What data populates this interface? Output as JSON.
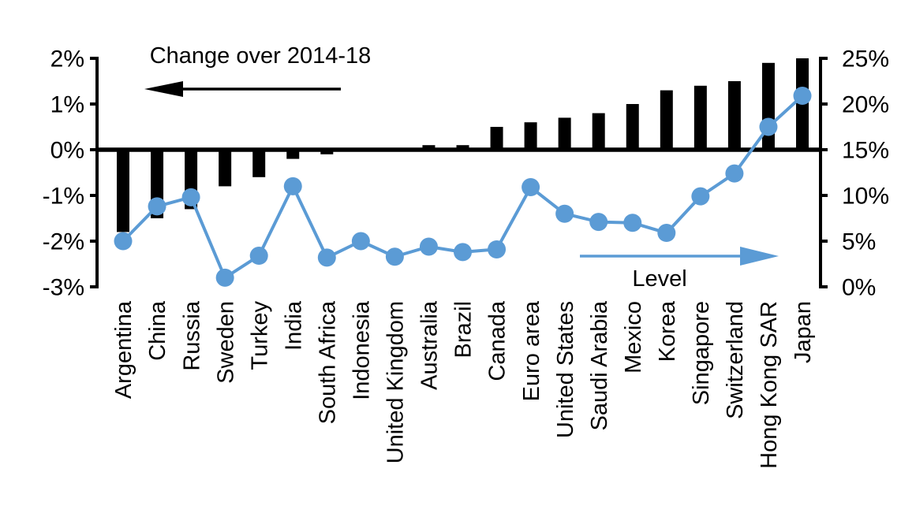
{
  "chart_data": {
    "type": "combo-bar-line",
    "title": "",
    "categories": [
      "Argentina",
      "China",
      "Russia",
      "Sweden",
      "Turkey",
      "India",
      "South Africa",
      "Indonesia",
      "United Kingdom",
      "Australia",
      "Brazil",
      "Canada",
      "Euro area",
      "United States",
      "Saudi Arabia",
      "Mexico",
      "Korea",
      "Singapore",
      "Switzerland",
      "Hong Kong SAR",
      "Japan"
    ],
    "series": [
      {
        "name": "Change over 2014-18",
        "chart": "bar",
        "axis": "left",
        "color": "#000000",
        "values": [
          -1.8,
          -1.5,
          -1.3,
          -0.8,
          -0.6,
          -0.2,
          -0.1,
          0.0,
          0.0,
          0.1,
          0.1,
          0.5,
          0.6,
          0.7,
          0.8,
          1.0,
          1.3,
          1.4,
          1.5,
          1.9,
          2.0
        ]
      },
      {
        "name": "Level",
        "chart": "line",
        "axis": "right",
        "color": "#5B9BD5",
        "values": [
          5.0,
          8.8,
          9.8,
          1.0,
          3.4,
          11.0,
          3.2,
          5.0,
          3.3,
          4.4,
          3.8,
          4.1,
          10.9,
          8.0,
          7.1,
          7.0,
          5.9,
          9.9,
          12.4,
          17.5,
          20.9
        ]
      }
    ],
    "left_axis": {
      "unit": "%",
      "min": -3,
      "max": 2,
      "tick_labels": [
        "2%",
        "1%",
        "0%",
        "-1%",
        "-2%",
        "-3%"
      ]
    },
    "right_axis": {
      "unit": "%",
      "min": 0,
      "max": 25,
      "tick_labels": [
        "25%",
        "20%",
        "15%",
        "10%",
        "5%",
        "0%"
      ]
    },
    "annotations": [
      {
        "text": "Change over 2014-18",
        "arrow": "left",
        "color": "#000000"
      },
      {
        "text": "Level",
        "arrow": "right",
        "color": "#5B9BD5"
      }
    ],
    "grid": false,
    "legend_position": "none",
    "colors": {
      "bar": "#000000",
      "line": "#5B9BD5",
      "background": "#ffffff"
    }
  }
}
